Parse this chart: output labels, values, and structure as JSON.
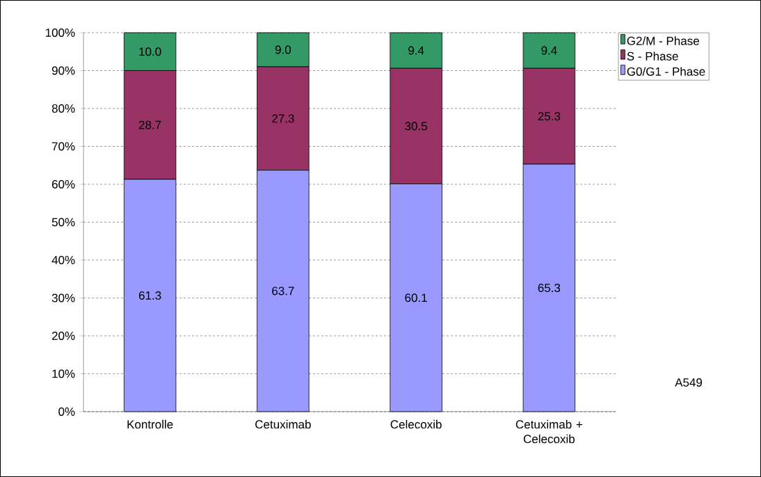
{
  "chart_data": {
    "type": "bar",
    "stacked": true,
    "categories": [
      "Kontrolle",
      "Cetuximab",
      "Celecoxib",
      "Cetuximab + Celecoxib"
    ],
    "series": [
      {
        "name": "G0/G1 - Phase",
        "color": "#9999ff",
        "values": [
          61.3,
          63.7,
          60.1,
          65.3
        ],
        "value_labels": [
          "61.3",
          "63.7",
          "60.1",
          "65.3"
        ]
      },
      {
        "name": "S - Phase",
        "color": "#993366",
        "values": [
          28.7,
          27.3,
          30.5,
          25.3
        ],
        "value_labels": [
          "28.7",
          "27.3",
          "30.5",
          "25.3"
        ]
      },
      {
        "name": "G2/M - Phase",
        "color": "#339966",
        "values": [
          10.0,
          9.0,
          9.4,
          9.4
        ],
        "value_labels": [
          "10.0",
          "9.0",
          "9.4",
          "9.4"
        ]
      }
    ],
    "ylim": [
      0,
      100
    ],
    "yticks": [
      {
        "value": 0,
        "label": "0%"
      },
      {
        "value": 10,
        "label": "10%"
      },
      {
        "value": 20,
        "label": "20%"
      },
      {
        "value": 30,
        "label": "30%"
      },
      {
        "value": 40,
        "label": "40%"
      },
      {
        "value": 50,
        "label": "50%"
      },
      {
        "value": 60,
        "label": "60%"
      },
      {
        "value": 70,
        "label": "70%"
      },
      {
        "value": 80,
        "label": "80%"
      },
      {
        "value": 90,
        "label": "90%"
      },
      {
        "value": 100,
        "label": "100%"
      }
    ],
    "grid": "y",
    "legend": "top right",
    "annotations": [
      "A549"
    ]
  }
}
